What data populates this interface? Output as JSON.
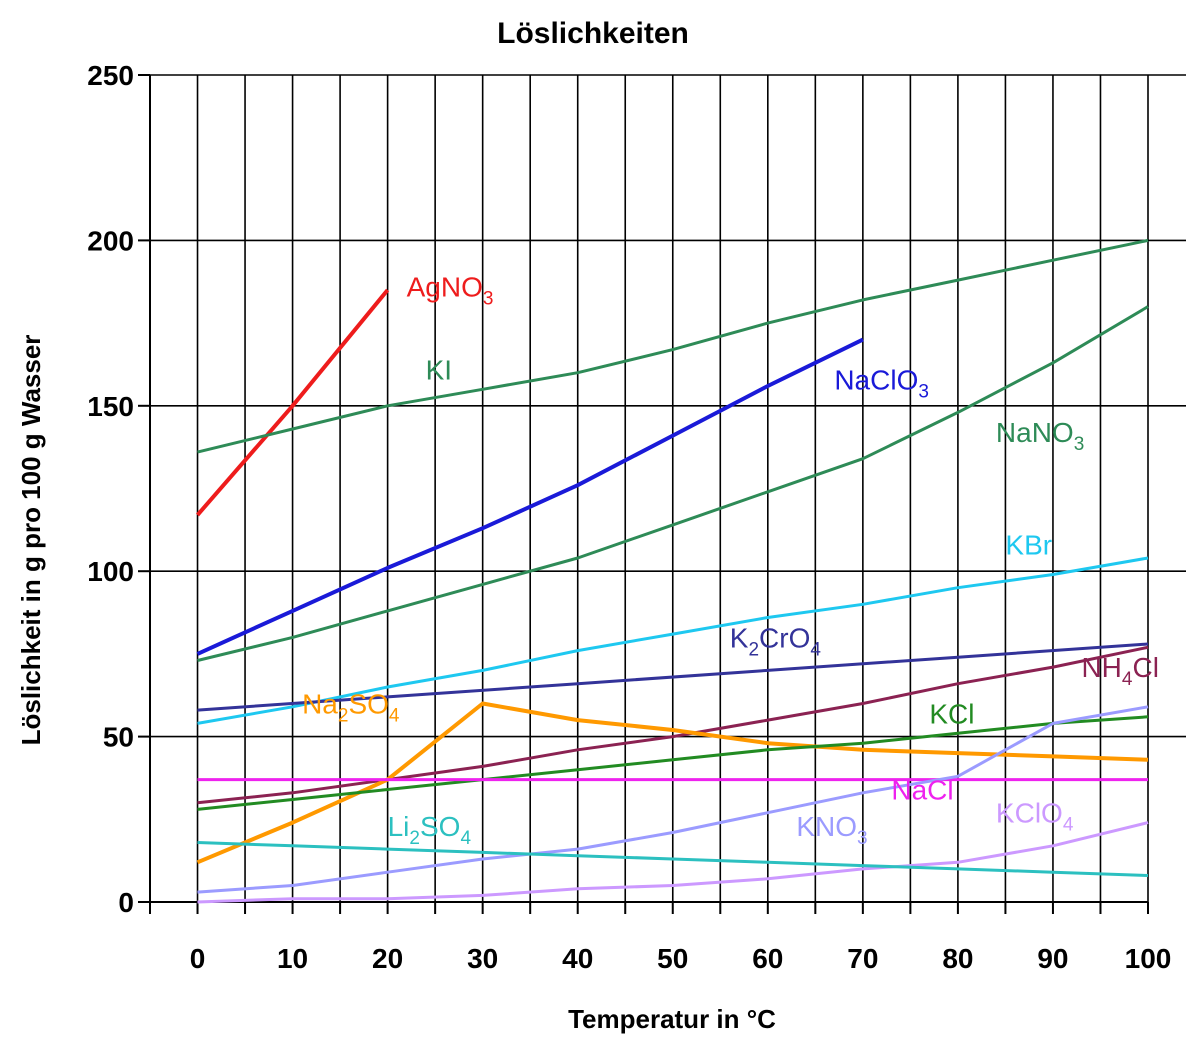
{
  "chart_data": {
    "type": "line",
    "title": "Löslichkeiten",
    "xlabel": "Temperatur in °C",
    "ylabel": "Löslichkeit in g pro 100 g Wasser",
    "xlim": [
      -5,
      100
    ],
    "ylim": [
      0,
      250
    ],
    "x_ticks": [
      0,
      10,
      20,
      30,
      40,
      50,
      60,
      70,
      80,
      90,
      100
    ],
    "y_ticks": [
      0,
      50,
      100,
      150,
      200,
      250
    ],
    "x_grid": [
      -5,
      0,
      5,
      10,
      15,
      20,
      25,
      30,
      35,
      40,
      45,
      50,
      55,
      60,
      65,
      70,
      75,
      80,
      85,
      90,
      95,
      100
    ],
    "grid": true,
    "legend": "inline labels",
    "series": [
      {
        "name": "AgNO3",
        "label_main": "AgNO",
        "label_sub": "3",
        "color": "#ee1c1c",
        "x": [
          0,
          10,
          20
        ],
        "y": [
          117,
          150,
          185
        ],
        "label_at": [
          22,
          183
        ]
      },
      {
        "name": "KI",
        "label_main": "KI",
        "label_sub": "",
        "color": "#2e8b57",
        "x": [
          0,
          10,
          20,
          30,
          40,
          50,
          60,
          70,
          80,
          90,
          100
        ],
        "y": [
          136,
          143,
          150,
          155,
          160,
          167,
          175,
          182,
          188,
          194,
          200
        ],
        "label_at": [
          24,
          158
        ]
      },
      {
        "name": "NaClO3",
        "label_main": "NaClO",
        "label_sub": "3",
        "color": "#1a1ad8",
        "x": [
          0,
          10,
          20,
          30,
          40,
          50,
          60,
          70
        ],
        "y": [
          75,
          88,
          101,
          113,
          126,
          141,
          156,
          170
        ],
        "label_at": [
          67,
          155
        ]
      },
      {
        "name": "NaNO3",
        "label_main": "NaNO",
        "label_sub": "3",
        "color": "#2e8b57",
        "x": [
          0,
          10,
          20,
          30,
          40,
          50,
          60,
          70,
          80,
          90,
          100
        ],
        "y": [
          73,
          80,
          88,
          96,
          104,
          114,
          124,
          134,
          148,
          163,
          180
        ],
        "label_at": [
          84,
          139
        ]
      },
      {
        "name": "KBr",
        "label_main": "KBr",
        "label_sub": "",
        "color": "#1ec8f0",
        "x": [
          0,
          10,
          20,
          30,
          40,
          50,
          60,
          70,
          80,
          90,
          100
        ],
        "y": [
          54,
          59,
          65,
          70,
          76,
          81,
          86,
          90,
          95,
          99,
          104
        ],
        "label_at": [
          85,
          105
        ]
      },
      {
        "name": "K2CrO4",
        "label_main": "K",
        "label_sub": "2",
        "label_tail": "CrO",
        "label_sub2": "4",
        "color": "#333399",
        "x": [
          0,
          20,
          40,
          60,
          80,
          100
        ],
        "y": [
          58,
          62,
          66,
          70,
          74,
          78
        ],
        "label_at": [
          56,
          77
        ]
      },
      {
        "name": "NH4Cl",
        "label_main": "NH",
        "label_sub": "4",
        "label_tail": "Cl",
        "color": "#8b2252",
        "x": [
          0,
          10,
          20,
          30,
          40,
          50,
          60,
          70,
          80,
          90,
          100
        ],
        "y": [
          30,
          33,
          37,
          41,
          46,
          50,
          55,
          60,
          66,
          71,
          77
        ],
        "label_at": [
          93,
          68
        ]
      },
      {
        "name": "Na2SO4",
        "label_main": "Na",
        "label_sub": "2",
        "label_tail": "SO",
        "label_sub2": "4",
        "color": "#ff9900",
        "x": [
          0,
          10,
          20,
          30,
          40,
          50,
          60,
          70,
          80,
          90,
          100
        ],
        "y": [
          12,
          24,
          37,
          60,
          55,
          52,
          48,
          46,
          45,
          44,
          43
        ],
        "label_at": [
          11,
          57
        ]
      },
      {
        "name": "KCl",
        "label_main": "KCl",
        "label_sub": "",
        "color": "#228b22",
        "x": [
          0,
          10,
          20,
          30,
          40,
          50,
          60,
          70,
          80,
          90,
          100
        ],
        "y": [
          28,
          31,
          34,
          37,
          40,
          43,
          46,
          48,
          51,
          54,
          56
        ],
        "label_at": [
          77,
          54
        ]
      },
      {
        "name": "NaCl",
        "label_main": "NaCl",
        "label_sub": "",
        "color": "#ee22ee",
        "x": [
          0,
          100
        ],
        "y": [
          37,
          37
        ],
        "label_at": [
          73,
          31
        ]
      },
      {
        "name": "KNO3",
        "label_main": "KNO",
        "label_sub": "3",
        "color": "#9b9bff",
        "x": [
          0,
          10,
          20,
          30,
          40,
          50,
          60,
          70,
          80,
          90,
          100
        ],
        "y": [
          3,
          5,
          9,
          13,
          16,
          21,
          27,
          33,
          38,
          54,
          59
        ],
        "label_at": [
          63,
          20
        ]
      },
      {
        "name": "KClO4",
        "label_main": "KClO",
        "label_sub": "4",
        "color": "#cc99ff",
        "x": [
          0,
          10,
          20,
          30,
          40,
          50,
          60,
          70,
          80,
          90,
          100
        ],
        "y": [
          0,
          1,
          1,
          2,
          4,
          5,
          7,
          10,
          12,
          17,
          24
        ],
        "label_at": [
          84,
          24
        ]
      },
      {
        "name": "Li2SO4",
        "label_main": "Li",
        "label_sub": "2",
        "label_tail": "SO",
        "label_sub2": "4",
        "color": "#2cc0c0",
        "x": [
          0,
          10,
          20,
          30,
          40,
          50,
          60,
          70,
          80,
          90,
          100
        ],
        "y": [
          18,
          17,
          16,
          15,
          14,
          13,
          12,
          11,
          10,
          9,
          8
        ],
        "label_at": [
          20,
          20
        ]
      }
    ]
  }
}
